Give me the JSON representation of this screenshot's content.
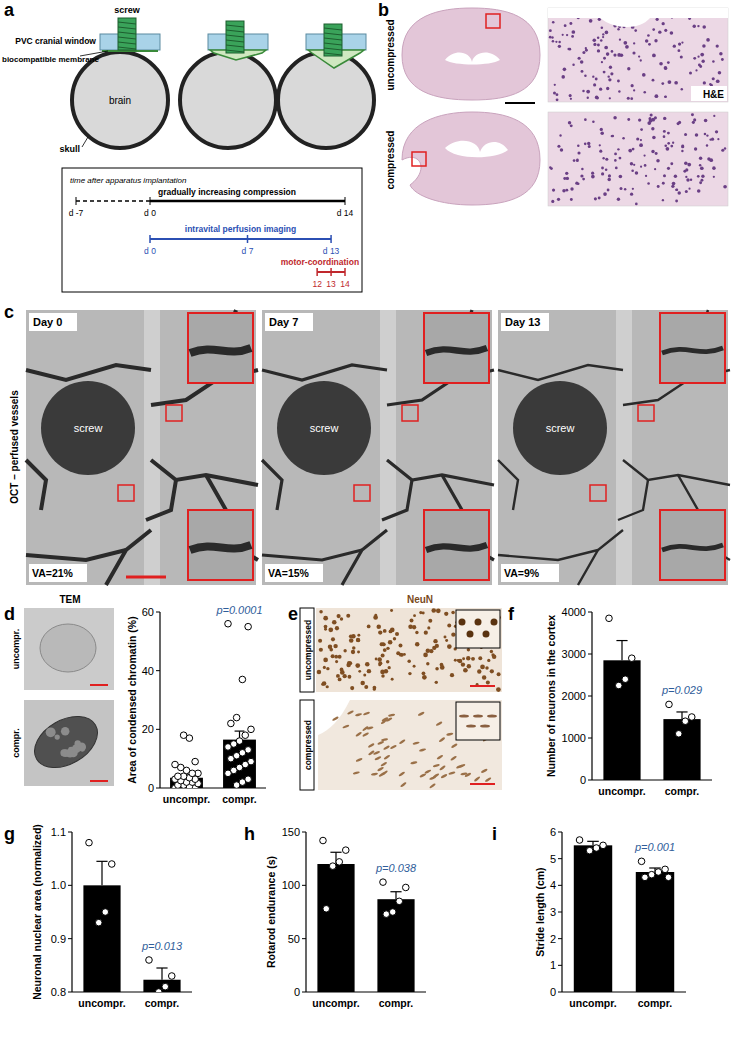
{
  "chart_data": [
    {
      "type": "bar",
      "panel_label": "d",
      "ylabel": "Area of condensed chromatin (%)",
      "categories": [
        "uncompr.",
        "compr."
      ],
      "values": [
        3.5,
        16.5
      ],
      "errors": [
        0.9,
        2.9
      ],
      "points": [
        [
          0,
          0,
          0.5,
          1,
          1,
          1.5,
          2,
          2,
          2.5,
          3,
          3,
          3.5,
          4,
          4,
          5,
          5,
          6,
          7,
          8,
          9,
          17,
          18
        ],
        [
          56,
          55,
          37,
          24,
          22,
          20,
          18,
          16,
          15,
          14,
          13,
          12,
          11,
          10,
          9,
          8,
          7,
          6,
          5,
          3,
          2,
          1
        ]
      ],
      "color": "#000000",
      "ylim": [
        0,
        60
      ],
      "yticks": [
        0,
        20,
        40,
        60
      ],
      "annotation": "p=0.0001"
    },
    {
      "type": "bar",
      "panel_label": "f",
      "ylabel": "Number of neurons in the cortex",
      "categories": [
        "uncompr.",
        "compr."
      ],
      "values": [
        2850,
        1450
      ],
      "errors": [
        470,
        170
      ],
      "points": [
        [
          3850,
          2900,
          2400,
          2250
        ],
        [
          1800,
          1500,
          1400,
          1100
        ]
      ],
      "color": "#000000",
      "ylim": [
        0,
        4000
      ],
      "yticks": [
        0,
        1000,
        2000,
        3000,
        4000
      ],
      "annotation": "p=0.029"
    },
    {
      "type": "bar",
      "panel_label": "g",
      "ylabel": "Neuronal nuclear area (normalized)",
      "categories": [
        "uncompr.",
        "compr."
      ],
      "values": [
        1.0,
        0.823
      ],
      "errors": [
        0.045,
        0.022
      ],
      "points": [
        [
          1.08,
          1.04,
          0.95,
          0.93
        ],
        [
          0.86,
          0.83,
          0.81,
          0.8
        ]
      ],
      "color": "#000000",
      "ylim": [
        0.8,
        1.1
      ],
      "yticks": [
        0.8,
        0.9,
        {
          "value": 1,
          "label": "1.0"
        },
        1.1
      ],
      "annotation": "p=0.013"
    },
    {
      "type": "bar",
      "panel_label": "h",
      "ylabel": "Rotarod endurance (s)",
      "categories": [
        "uncompr.",
        "compr."
      ],
      "values": [
        120,
        87
      ],
      "errors": [
        11,
        7
      ],
      "points": [
        [
          142,
          133,
          122,
          118,
          78
        ],
        [
          103,
          98,
          85,
          75,
          73
        ]
      ],
      "color": "#000000",
      "ylim": [
        0,
        150
      ],
      "yticks": [
        0,
        50,
        100,
        150
      ],
      "annotation": "p=0.038"
    },
    {
      "type": "bar",
      "panel_label": "i",
      "ylabel": "Stride length (cm)",
      "categories": [
        "uncompr.",
        "compr."
      ],
      "values": [
        5.5,
        4.5
      ],
      "errors": [
        0.15,
        0.15
      ],
      "points": [
        [
          5.7,
          5.5,
          5.4,
          5.3
        ],
        [
          4.9,
          4.6,
          4.5,
          4.4,
          4.3,
          4.3
        ]
      ],
      "color": "#000000",
      "ylim": [
        0,
        6
      ],
      "yticks": [
        0,
        1,
        2,
        3,
        4,
        5,
        6
      ],
      "annotation": "p=0.001"
    }
  ],
  "figure": {
    "a": {
      "label": "a",
      "schematic": [
        "screw",
        "PVC cranial window",
        "biocompatible membrane",
        "brain",
        "skull"
      ],
      "timeline": {
        "implant": "time after apparatus implantation",
        "implant_start": "d -7",
        "compression": "gradually increasing compression",
        "compression_start": "d 0",
        "compression_end": "d 14",
        "imaging": "intravital perfusion imaging",
        "imaging_days": [
          "d 0",
          "d 7",
          "d 13"
        ],
        "motor": "motor-coordination",
        "motor_days": [
          "12",
          "13",
          "14"
        ]
      }
    },
    "b": {
      "label": "b",
      "rows": [
        "uncompressed",
        "compressed"
      ],
      "stain": "H&E"
    },
    "c": {
      "label": "c",
      "side_label": "OCT – perfused vessels",
      "images": [
        {
          "day": "Day 0",
          "screw": "screw",
          "va": "VA=21%"
        },
        {
          "day": "Day 7",
          "screw": "screw",
          "va": "VA=15%"
        },
        {
          "day": "Day 13",
          "screw": "screw",
          "va": "VA=9%"
        }
      ]
    },
    "d": {
      "method": "TEM",
      "rows": [
        "uncompr.",
        "compr."
      ]
    },
    "e": {
      "label": "e",
      "stain": "NeuN",
      "rows": [
        "uncompressed",
        "compressed"
      ]
    }
  }
}
